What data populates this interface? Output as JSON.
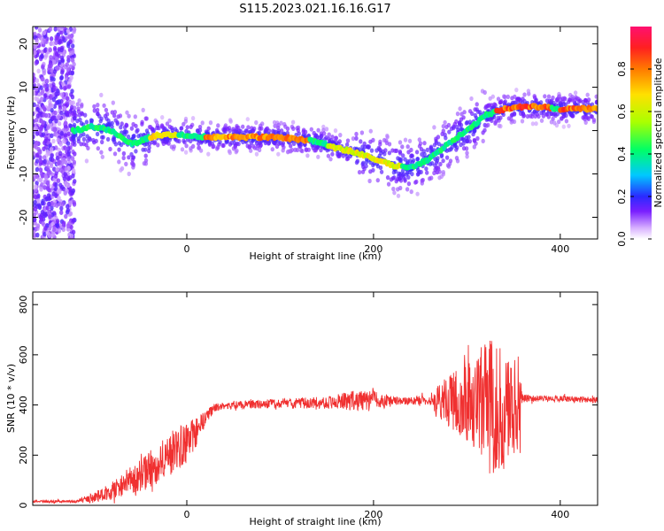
{
  "title": "S115.2023.021.16.16.G17",
  "chart_data": [
    {
      "type": "heatmap",
      "xlabel": "Height of straight line (km)",
      "ylabel": "Frequency (Hz)",
      "xlim": [
        -165,
        440
      ],
      "ylim": [
        -25,
        24
      ],
      "xticks": [
        0,
        200,
        400
      ],
      "yticks": [
        -20,
        -10,
        0,
        10,
        20
      ],
      "colorbar": {
        "label": "Normalized spectral amplitude",
        "range": [
          0,
          1
        ],
        "ticks": [
          0.0,
          0.2,
          0.4,
          0.6,
          0.8
        ],
        "colormap": "rainbow"
      },
      "peak_frequency_track": {
        "x": [
          -120,
          -100,
          -80,
          -60,
          -50,
          -40,
          -30,
          -20,
          0,
          20,
          50,
          100,
          140,
          160,
          180,
          200,
          220,
          240,
          260,
          280,
          300,
          320,
          340,
          360,
          380,
          400,
          430
        ],
        "y": [
          0,
          1,
          0,
          -3,
          -2.5,
          -1.5,
          -1,
          -1,
          -1,
          -1.5,
          -1.5,
          -1.5,
          -2.5,
          -4,
          -5,
          -6.5,
          -8,
          -8.5,
          -6.5,
          -3,
          0,
          3.5,
          5,
          5.5,
          5.5,
          5,
          5
        ]
      },
      "grid": false
    },
    {
      "type": "line",
      "xlabel": "Height of straight line (km)",
      "ylabel": "SNR (10 * v/v)",
      "xlim": [
        -165,
        440
      ],
      "ylim": [
        0,
        850
      ],
      "xticks": [
        0,
        200,
        400
      ],
      "yticks": [
        0,
        200,
        400,
        600,
        800
      ],
      "color": "#f03030",
      "envelope": {
        "x": [
          -165,
          -120,
          -100,
          -80,
          -60,
          -40,
          -20,
          0,
          10,
          20,
          30,
          50,
          100,
          150,
          190,
          200,
          210,
          230,
          260,
          270,
          290,
          310,
          320,
          330,
          340,
          355,
          360,
          400,
          440
        ],
        "center": [
          15,
          15,
          30,
          60,
          100,
          140,
          200,
          250,
          290,
          350,
          390,
          400,
          405,
          410,
          420,
          430,
          415,
          415,
          420,
          420,
          410,
          400,
          400,
          390,
          380,
          390,
          425,
          425,
          420
        ],
        "spread": [
          5,
          5,
          20,
          35,
          55,
          75,
          90,
          80,
          60,
          30,
          15,
          15,
          20,
          25,
          45,
          40,
          25,
          15,
          20,
          70,
          130,
          190,
          280,
          260,
          230,
          180,
          15,
          12,
          12
        ]
      },
      "grid": false
    }
  ]
}
